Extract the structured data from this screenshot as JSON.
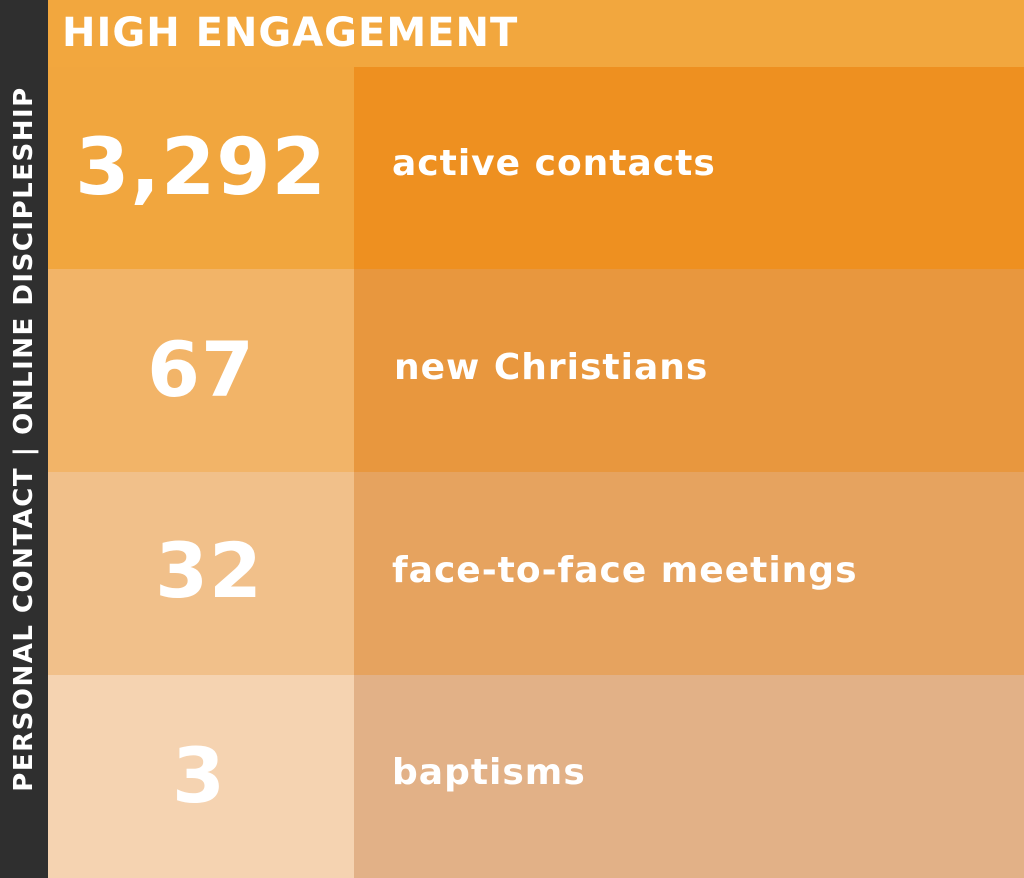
{
  "side_label": "PERSONAL CONTACT | ONLINE DISCIPLESHIP",
  "header": {
    "title": "HIGH ENGAGEMENT"
  },
  "stats": [
    {
      "value": "3,292",
      "label": "active contacts"
    },
    {
      "value": "67",
      "label": "new Christians"
    },
    {
      "value": "32",
      "label": "face-to-face meetings"
    },
    {
      "value": "3",
      "label": "baptisms"
    }
  ],
  "colors": {
    "side_bar": "#2f2f2f",
    "header": "#f2a73e",
    "row1_left": "#f1a63e",
    "row1_right": "#ee9020",
    "row2_left": "#f2b468",
    "row2_right": "#e8973e",
    "row3_left": "#f1c08a",
    "row3_right": "#e6a35f",
    "row4_left": "#f5d3b1",
    "row4_right": "#e2b187",
    "text": "#ffffff"
  }
}
